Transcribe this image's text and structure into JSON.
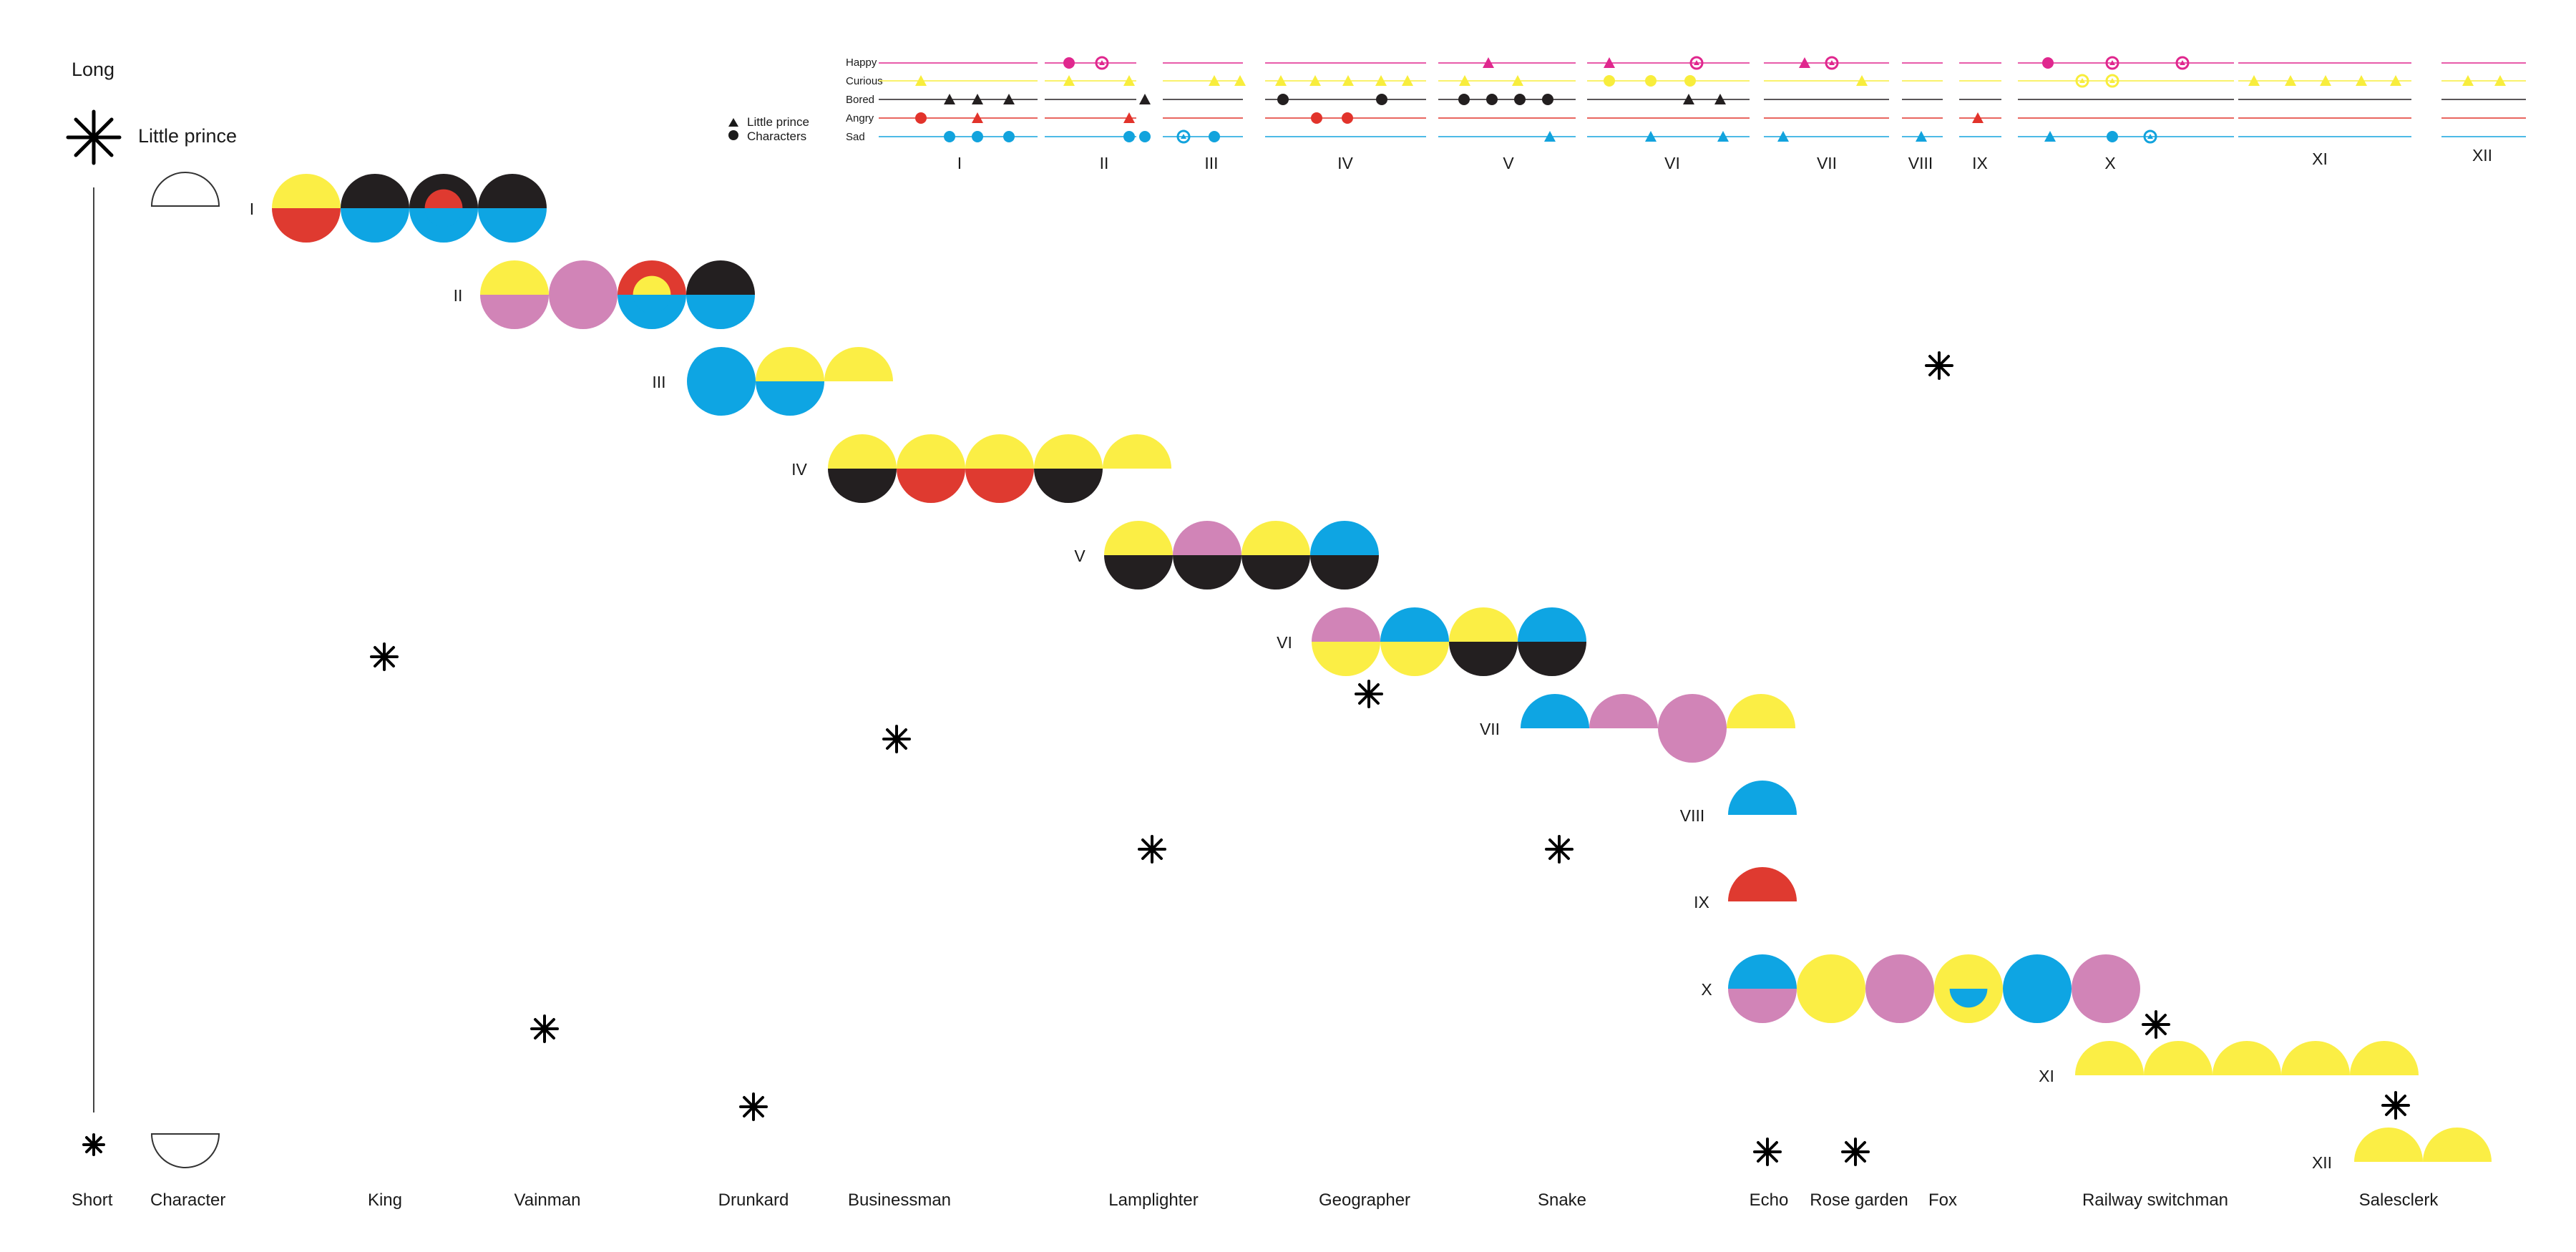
{
  "colors": {
    "happy": "#e0278e",
    "curious": "#f8ed3c",
    "bored": "#231f20",
    "angry": "#e2332b",
    "sad": "#12a3dd",
    "mauve": "#d184b7",
    "yellow": "#fbee45",
    "black": "#231f20",
    "red": "#df3a30",
    "blue": "#0ea5e3"
  },
  "legend": {
    "long": "Long",
    "short": "Short",
    "little_prince": "Little prince",
    "character": "Character"
  },
  "emotion_chart": {
    "emotions": [
      "Happy",
      "Curious",
      "Bored",
      "Angry",
      "Sad"
    ],
    "legend": {
      "triangle": "Little prince",
      "circle": "Characters"
    },
    "chapters": [
      "I",
      "II",
      "III",
      "IV",
      "V",
      "VI",
      "VII",
      "VIII",
      "IX",
      "X",
      "XI",
      "XII"
    ]
  },
  "timeline": {
    "chapters": [
      {
        "label": "I",
        "units": [
          {
            "type": "circle",
            "top": "yellow",
            "bottom": "red"
          },
          {
            "type": "circle",
            "top": "black",
            "bottom": "blue"
          },
          {
            "type": "circle",
            "top": "black",
            "bottom": "blue",
            "inner": {
              "top": "red",
              "bottom": "blue"
            }
          },
          {
            "type": "circle",
            "top": "black",
            "bottom": "blue"
          }
        ]
      },
      {
        "label": "II",
        "units": [
          {
            "type": "circle",
            "top": "yellow",
            "bottom": "mauve"
          },
          {
            "type": "circle",
            "top": "mauve",
            "bottom": "mauve"
          },
          {
            "type": "circle",
            "top": "red",
            "bottom": "blue",
            "inner": {
              "top": "yellow",
              "bottom": "blue"
            }
          },
          {
            "type": "circle",
            "top": "black",
            "bottom": "blue"
          }
        ]
      },
      {
        "label": "III",
        "units": [
          {
            "type": "circle",
            "top": "blue",
            "bottom": "blue"
          },
          {
            "type": "circle",
            "top": "yellow",
            "bottom": "blue"
          },
          {
            "type": "semi",
            "top": "yellow"
          }
        ]
      },
      {
        "label": "IV",
        "units": [
          {
            "type": "circle",
            "top": "yellow",
            "bottom": "black"
          },
          {
            "type": "circle",
            "top": "yellow",
            "bottom": "red"
          },
          {
            "type": "circle",
            "top": "yellow",
            "bottom": "red"
          },
          {
            "type": "circle",
            "top": "yellow",
            "bottom": "black"
          },
          {
            "type": "semi",
            "top": "yellow"
          }
        ]
      },
      {
        "label": "V",
        "units": [
          {
            "type": "circle",
            "top": "yellow",
            "bottom": "black"
          },
          {
            "type": "circle",
            "top": "mauve",
            "bottom": "black"
          },
          {
            "type": "circle",
            "top": "yellow",
            "bottom": "black"
          },
          {
            "type": "circle",
            "top": "blue",
            "bottom": "black"
          }
        ]
      },
      {
        "label": "VI",
        "units": [
          {
            "type": "circle",
            "top": "mauve",
            "bottom": "yellow"
          },
          {
            "type": "circle",
            "top": "blue",
            "bottom": "yellow"
          },
          {
            "type": "circle",
            "top": "yellow",
            "bottom": "black"
          },
          {
            "type": "circle",
            "top": "blue",
            "bottom": "black"
          }
        ]
      },
      {
        "label": "VII",
        "units": [
          {
            "type": "semi",
            "top": "blue"
          },
          {
            "type": "semi",
            "top": "mauve"
          },
          {
            "type": "circle",
            "top": "mauve",
            "bottom": "mauve"
          },
          {
            "type": "semi",
            "top": "yellow"
          }
        ]
      },
      {
        "label": "VIII",
        "units": [
          {
            "type": "semi",
            "top": "blue"
          }
        ]
      },
      {
        "label": "IX",
        "units": [
          {
            "type": "semi",
            "top": "red"
          }
        ]
      },
      {
        "label": "X",
        "units": [
          {
            "type": "circle",
            "top": "blue",
            "bottom": "mauve"
          },
          {
            "type": "circle",
            "top": "yellow",
            "bottom": "yellow"
          },
          {
            "type": "circle",
            "top": "mauve",
            "bottom": "mauve"
          },
          {
            "type": "circle",
            "top": "yellow",
            "bottom": "yellow",
            "inner": {
              "top": "yellow",
              "bottom": "blue"
            }
          },
          {
            "type": "circle",
            "top": "blue",
            "bottom": "blue"
          },
          {
            "type": "circle",
            "top": "mauve",
            "bottom": "mauve"
          }
        ]
      },
      {
        "label": "XI",
        "units": [
          {
            "type": "semi",
            "top": "yellow"
          },
          {
            "type": "semi",
            "top": "yellow"
          },
          {
            "type": "semi",
            "top": "yellow"
          },
          {
            "type": "semi",
            "top": "yellow"
          },
          {
            "type": "semi",
            "top": "yellow"
          }
        ]
      },
      {
        "label": "XII",
        "units": [
          {
            "type": "semi",
            "top": "yellow"
          },
          {
            "type": "semi",
            "top": "yellow"
          }
        ]
      }
    ]
  },
  "characters": [
    {
      "name": "King",
      "star": "short"
    },
    {
      "name": "Vainman",
      "star": "short"
    },
    {
      "name": "Drunkard",
      "star": "short"
    },
    {
      "name": "Businessman",
      "star": "short"
    },
    {
      "name": "Lamplighter",
      "star": "short"
    },
    {
      "name": "Geographer",
      "star": "short"
    },
    {
      "name": "Snake",
      "star": "short"
    },
    {
      "name": "Echo",
      "star": "short"
    },
    {
      "name": "Rose garden",
      "star": "short"
    },
    {
      "name": "Fox",
      "star": "short"
    },
    {
      "name": "Railway switchman",
      "star": "short"
    },
    {
      "name": "Salesclerk",
      "star": "short"
    }
  ]
}
